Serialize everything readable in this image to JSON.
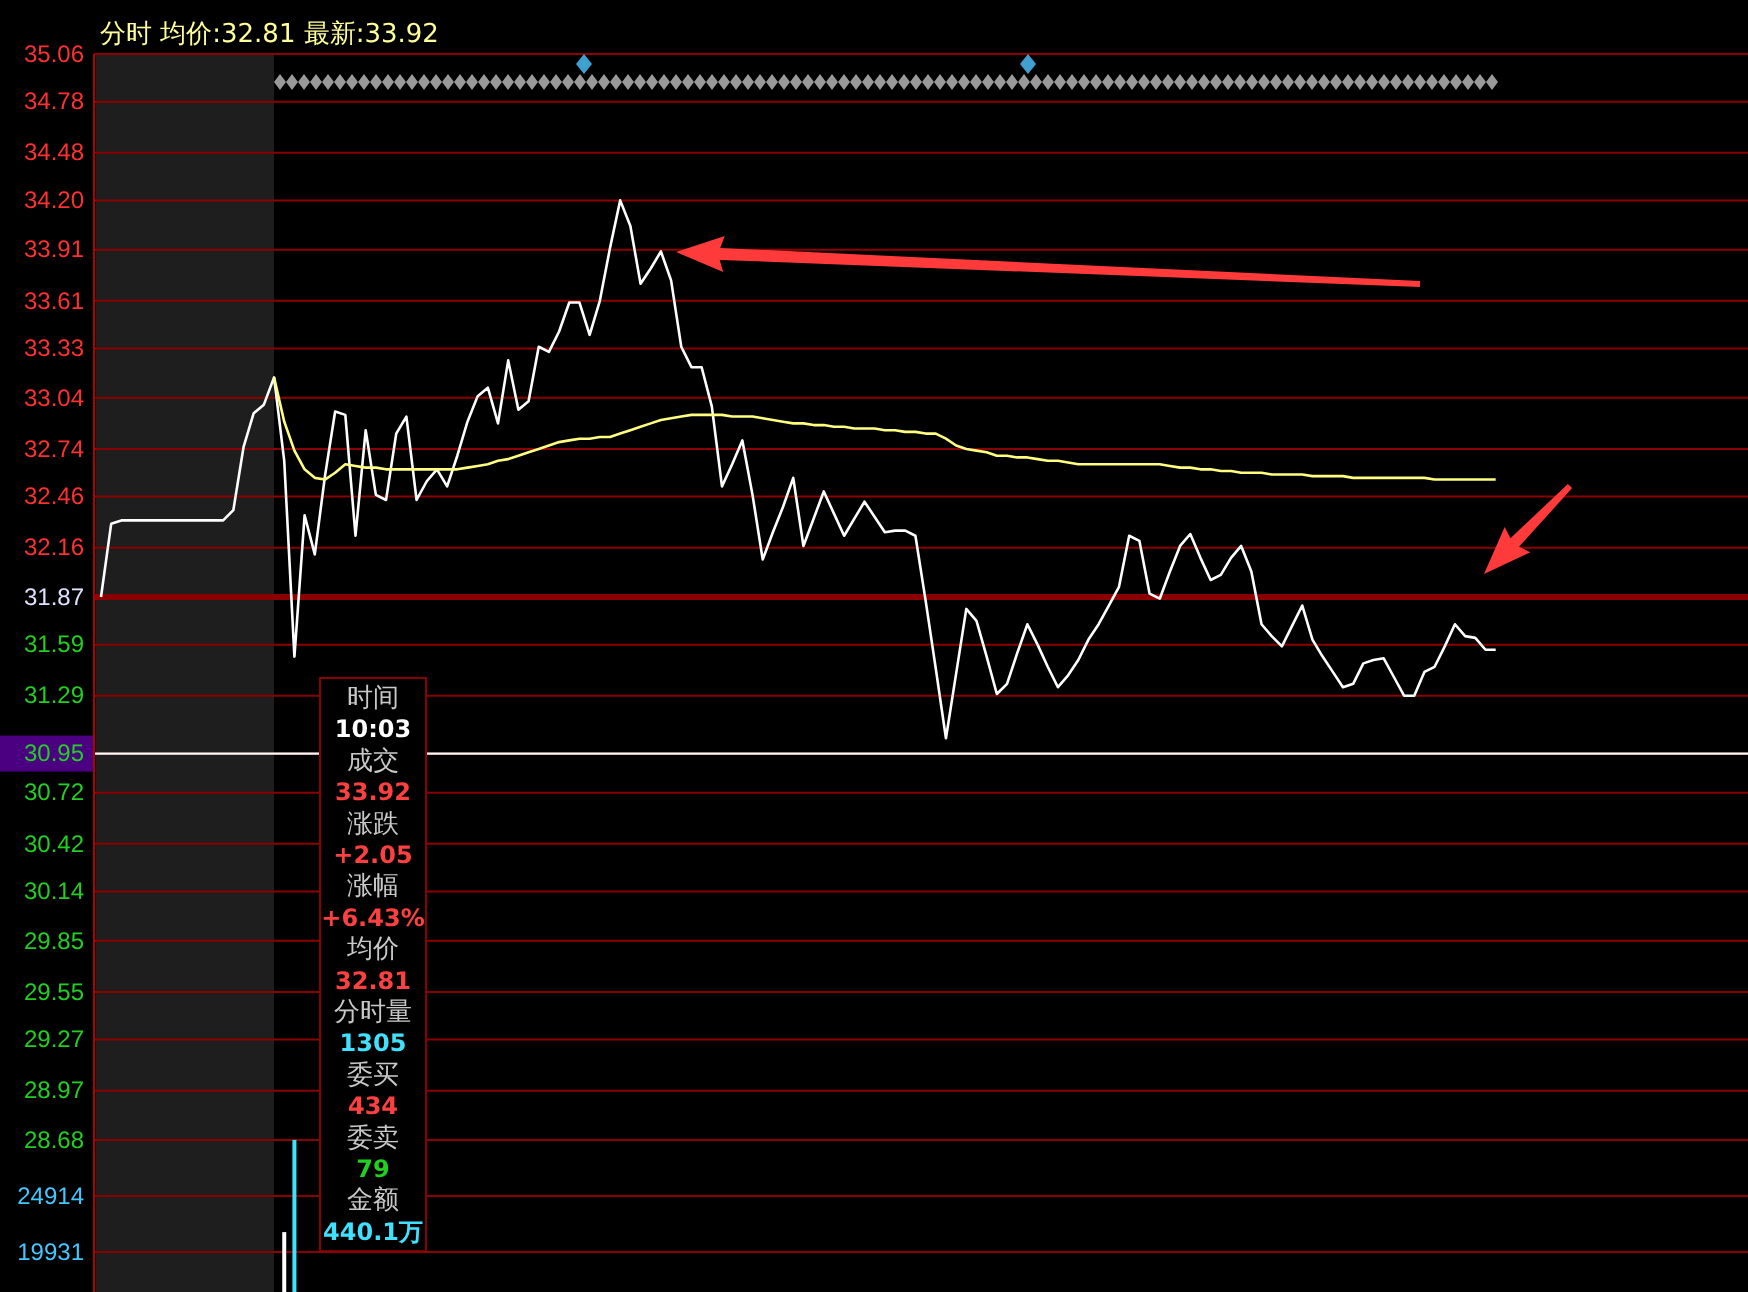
{
  "chart_data": [
    {
      "type": "line",
      "title": "分时 均价:32.81 最新:33.92",
      "categories": [
        null,
        null,
        null,
        null,
        null,
        null,
        null,
        null,
        null,
        null,
        null,
        null,
        null,
        null,
        null,
        null,
        null,
        null,
        null,
        null,
        null,
        null,
        null,
        null,
        null,
        null,
        null,
        null,
        null,
        null,
        null,
        null,
        null,
        null,
        null,
        null,
        null,
        null,
        null,
        null,
        null,
        null,
        null,
        null,
        null,
        null,
        null,
        null,
        null,
        null,
        null,
        null,
        null,
        null,
        null,
        null,
        null,
        null,
        null,
        null,
        null,
        null,
        null,
        null,
        null,
        null,
        null,
        null,
        null,
        null,
        null,
        null,
        null,
        null,
        null,
        null,
        null,
        null,
        null,
        null,
        null,
        null,
        null,
        null,
        null,
        null,
        null,
        null,
        null,
        null,
        null,
        null,
        null,
        null,
        null,
        null,
        null,
        null,
        null,
        null,
        null,
        null,
        null,
        null,
        null,
        null,
        null,
        null,
        null,
        null,
        null,
        null,
        null,
        null,
        null,
        null,
        null,
        null,
        null,
        null,
        null,
        null,
        null,
        null,
        null,
        null,
        null,
        null,
        null,
        null,
        null,
        null,
        null,
        null,
        null,
        null,
        null,
        null,
        null,
        null,
        null,
        null,
        null,
        null,
        null,
        null,
        null,
        null,
        null,
        null,
        null,
        null,
        null,
        null,
        null,
        null,
        null,
        null,
        null,
        null,
        null,
        null
      ],
      "ylim": [
        28.68,
        35.06
      ],
      "yticks": [
        35.06,
        34.78,
        34.48,
        {
          "value": 34.2,
          "label": "34.20"
        },
        33.91,
        33.61,
        33.33,
        33.04,
        32.74,
        32.46,
        32.16,
        31.87,
        31.59,
        31.29,
        30.95,
        30.72,
        30.42,
        30.14,
        29.85,
        29.55,
        29.27,
        28.97,
        28.68
      ],
      "grid": "y",
      "marker": "none",
      "line_style": "solid",
      "series": [
        {
          "color": "#ffffff",
          "values": [
            31.87,
            32.3,
            32.32,
            32.32,
            32.32,
            32.32,
            32.32,
            32.32,
            32.32,
            32.32,
            32.32,
            32.32,
            32.32,
            32.38,
            32.75,
            32.95,
            33.0,
            33.16,
            32.67,
            31.52,
            32.35,
            32.12,
            32.58,
            32.96,
            32.94,
            32.23,
            32.85,
            32.47,
            32.44,
            32.83,
            32.93,
            32.44,
            32.55,
            32.62,
            32.52,
            32.7,
            32.9,
            33.05,
            33.1,
            32.89,
            33.26,
            32.97,
            33.02,
            33.34,
            33.31,
            33.43,
            33.6,
            33.6,
            33.41,
            33.61,
            33.92,
            34.2,
            34.05,
            33.71,
            33.8,
            33.9,
            33.73,
            33.34,
            33.22,
            33.22,
            32.99,
            32.52,
            32.65,
            32.79,
            32.47,
            32.09,
            32.25,
            32.4,
            32.57,
            32.17,
            32.33,
            32.49,
            32.36,
            32.23,
            32.33,
            32.43,
            32.34,
            32.25,
            32.26,
            32.26,
            32.23,
            31.85,
            31.45,
            31.04,
            31.42,
            31.8,
            31.73,
            31.52,
            31.3,
            31.36,
            31.54,
            31.71,
            31.59,
            31.46,
            31.34,
            31.41,
            31.5,
            31.62,
            31.71,
            31.82,
            31.93,
            32.23,
            32.2,
            31.89,
            31.86,
            32.02,
            32.17,
            32.24,
            32.1,
            31.97,
            32.0,
            32.1,
            32.17,
            32.02,
            31.71,
            31.64,
            31.58,
            31.7,
            31.82,
            31.62,
            31.52,
            31.43,
            31.34,
            31.36,
            31.48,
            31.5,
            31.51,
            31.4,
            31.29,
            31.29,
            31.43,
            31.46,
            31.58,
            31.71,
            31.64,
            31.63,
            31.56,
            31.56,
            null,
            null,
            null,
            null,
            null,
            null,
            null,
            null,
            null,
            null,
            null,
            null,
            null,
            null,
            null,
            null,
            null,
            null,
            null,
            null,
            null,
            null,
            null,
            null
          ]
        },
        {
          "color": "#ffff80",
          "values": [
            null,
            null,
            null,
            null,
            null,
            null,
            null,
            null,
            null,
            null,
            null,
            null,
            null,
            null,
            null,
            null,
            null,
            33.16,
            32.9,
            32.73,
            32.62,
            32.57,
            32.56,
            32.6,
            32.65,
            32.64,
            32.63,
            32.63,
            32.62,
            32.62,
            32.62,
            32.62,
            32.62,
            32.62,
            32.62,
            32.62,
            32.63,
            32.64,
            32.65,
            32.67,
            32.68,
            32.7,
            32.72,
            32.74,
            32.76,
            32.78,
            32.79,
            32.8,
            32.8,
            32.81,
            32.81,
            32.83,
            32.85,
            32.87,
            32.89,
            32.91,
            32.92,
            32.93,
            32.94,
            32.94,
            32.94,
            32.94,
            32.93,
            32.93,
            32.93,
            32.92,
            32.91,
            32.9,
            32.89,
            32.89,
            32.88,
            32.88,
            32.87,
            32.87,
            32.86,
            32.86,
            32.86,
            32.85,
            32.85,
            32.84,
            32.84,
            32.83,
            32.83,
            32.8,
            32.76,
            32.74,
            32.73,
            32.72,
            32.7,
            32.7,
            32.69,
            32.69,
            32.68,
            32.67,
            32.67,
            32.66,
            32.65,
            32.65,
            32.65,
            32.65,
            32.65,
            32.65,
            32.65,
            32.65,
            32.65,
            32.64,
            32.63,
            32.63,
            32.62,
            32.62,
            32.61,
            32.61,
            32.6,
            32.6,
            32.6,
            32.59,
            32.59,
            32.59,
            32.59,
            32.58,
            32.58,
            32.58,
            32.58,
            32.57,
            32.57,
            32.57,
            32.57,
            32.57,
            32.57,
            32.57,
            32.57,
            32.56,
            32.56,
            32.56,
            32.56,
            32.56,
            32.56,
            32.56,
            null,
            null,
            null,
            null,
            null,
            null,
            null,
            null,
            null,
            null,
            null,
            null,
            null,
            null,
            null,
            null,
            null,
            null,
            null,
            null,
            null,
            null,
            null,
            null
          ]
        }
      ],
      "ref_lines": [
        {
          "axis": "y",
          "value": 31.87,
          "color": "#8b0000"
        },
        {
          "axis": "y",
          "value": 30.95,
          "color": "#ffffff"
        }
      ],
      "annotations": [
        "时间",
        "10:03",
        "成交",
        "33.92",
        "涨跌",
        "+2.05",
        "涨幅",
        "+6.43%",
        "均价",
        "32.81",
        "分时量",
        "1305",
        "委买",
        "434",
        "委卖",
        "79",
        "金额",
        "440.1万"
      ]
    },
    {
      "type": "bar",
      "ylim": [
        16370,
        29900
      ],
      "yticks": [
        24914,
        19931
      ],
      "grid": "y",
      "categories": [
        null,
        null,
        null,
        null,
        null,
        null,
        null,
        null,
        null,
        null,
        null,
        null,
        null,
        null,
        null,
        null,
        null,
        null,
        null,
        null,
        null,
        null,
        null,
        null,
        null,
        null,
        null,
        null,
        null,
        null,
        null,
        null,
        null,
        null,
        null,
        null,
        null,
        null,
        null,
        null,
        null,
        null,
        null,
        null,
        null,
        null,
        null,
        null,
        null,
        null,
        null,
        null,
        null,
        null,
        null,
        null,
        null,
        null,
        null,
        null,
        null,
        null,
        null,
        null,
        null,
        null,
        null,
        null,
        null,
        null,
        null,
        null,
        null,
        null,
        null,
        null,
        null,
        null,
        null,
        null,
        null,
        null,
        null,
        null,
        null,
        null,
        null,
        null,
        null,
        null,
        null,
        null,
        null,
        null,
        null,
        null,
        null,
        null,
        null,
        null,
        null,
        null,
        null,
        null,
        null,
        null,
        null,
        null,
        null,
        null,
        null,
        null,
        null,
        null,
        null,
        null,
        null,
        null,
        null,
        null,
        null,
        null,
        null,
        null,
        null,
        null,
        null,
        null,
        null,
        null,
        null,
        null,
        null,
        null,
        null,
        null,
        null,
        null,
        null,
        null,
        null,
        null,
        null,
        null,
        null,
        null,
        null,
        null,
        null,
        null,
        null,
        null,
        null,
        null,
        null,
        null,
        null,
        null,
        null,
        null,
        null,
        null
      ],
      "values": [
        null,
        null,
        null,
        null,
        null,
        null,
        null,
        null,
        null,
        null,
        null,
        null,
        null,
        null,
        null,
        null,
        null,
        null,
        21700,
        29900,
        null,
        null,
        null,
        null,
        null,
        null,
        null,
        null,
        null,
        null,
        null,
        null,
        null,
        null,
        null,
        null,
        null,
        null,
        null,
        null,
        null,
        null,
        null,
        null,
        null,
        null,
        null,
        null,
        null,
        null,
        null,
        null,
        null,
        null,
        null,
        null,
        null,
        null,
        null,
        null,
        null,
        null,
        null,
        null,
        null,
        null,
        null,
        null,
        null,
        null,
        null,
        null,
        null,
        null,
        null,
        null,
        null,
        null,
        null,
        null,
        null,
        null,
        null,
        null,
        null,
        null,
        null,
        null,
        null,
        null,
        null,
        null,
        null,
        null,
        null,
        null,
        null,
        null,
        null,
        null,
        null,
        null,
        null,
        null,
        null,
        null,
        null,
        null,
        null,
        null,
        null,
        null,
        null,
        null,
        null,
        null,
        null,
        null,
        null,
        null,
        null,
        null,
        null,
        null,
        null,
        null,
        null,
        null,
        null,
        null,
        null,
        null,
        null,
        null,
        null,
        null,
        null,
        null,
        null,
        null,
        null,
        null,
        null,
        null,
        null,
        null,
        null,
        null,
        null,
        null,
        null,
        null,
        null,
        null,
        null,
        null,
        null,
        null,
        null,
        null,
        null,
        null
      ],
      "colors": [
        null,
        null,
        null,
        null,
        null,
        null,
        null,
        null,
        null,
        null,
        null,
        null,
        null,
        null,
        null,
        null,
        null,
        null,
        "#ffffff",
        "#40e0ff",
        null,
        null,
        null,
        null,
        null,
        null,
        null,
        null,
        null,
        null,
        null,
        null,
        null,
        null,
        null,
        null,
        null,
        null,
        null,
        null,
        null,
        null,
        null,
        null,
        null,
        null,
        null,
        null,
        null,
        null,
        null,
        null,
        null,
        null,
        null,
        null,
        null,
        null,
        null,
        null,
        null,
        null,
        null,
        null,
        null,
        null,
        null,
        null,
        null,
        null,
        null,
        null,
        null,
        null,
        null,
        null,
        null,
        null,
        null,
        null,
        null,
        null,
        null,
        null,
        null,
        null,
        null,
        null,
        null,
        null,
        null,
        null,
        null,
        null,
        null,
        null,
        null,
        null,
        null,
        null,
        null,
        null,
        null,
        null,
        null,
        null,
        null,
        null,
        null,
        null,
        null,
        null,
        null,
        null,
        null,
        null,
        null,
        null,
        null,
        null,
        null,
        null,
        null,
        null,
        null,
        null,
        null,
        null,
        null,
        null,
        null,
        null,
        null,
        null,
        null,
        null,
        null,
        null,
        null,
        null,
        null,
        null,
        null,
        null,
        null,
        null,
        null,
        null,
        null,
        null,
        null,
        null,
        null,
        null,
        null,
        null,
        null,
        null,
        null,
        null,
        null,
        null
      ]
    }
  ]
}
